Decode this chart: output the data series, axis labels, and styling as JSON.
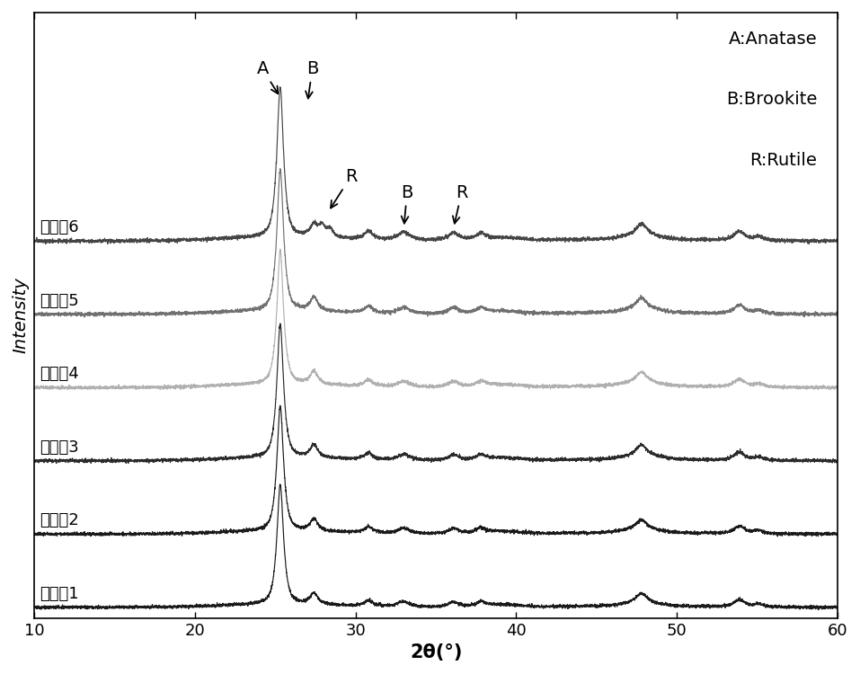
{
  "xlabel": "2θ(°)",
  "ylabel": "Intensity",
  "xlim": [
    10,
    60
  ],
  "x_ticks": [
    10,
    20,
    30,
    40,
    50,
    60
  ],
  "labels": [
    "实施例1",
    "实施例2",
    "实施例3",
    "实施例4",
    "实施例5",
    "实施例6"
  ],
  "line_colors": [
    "#1a1a1a",
    "#1a1a1a",
    "#2a2a2a",
    "#b0b0b0",
    "#707070",
    "#454545"
  ],
  "offsets": [
    0.0,
    0.55,
    1.1,
    1.65,
    2.2,
    2.75
  ],
  "legend_text": [
    "A:Anatase",
    "B:Brookite",
    "R:Rutile"
  ],
  "background_color": "white",
  "fig_width": 9.57,
  "fig_height": 7.5,
  "dpi": 100
}
